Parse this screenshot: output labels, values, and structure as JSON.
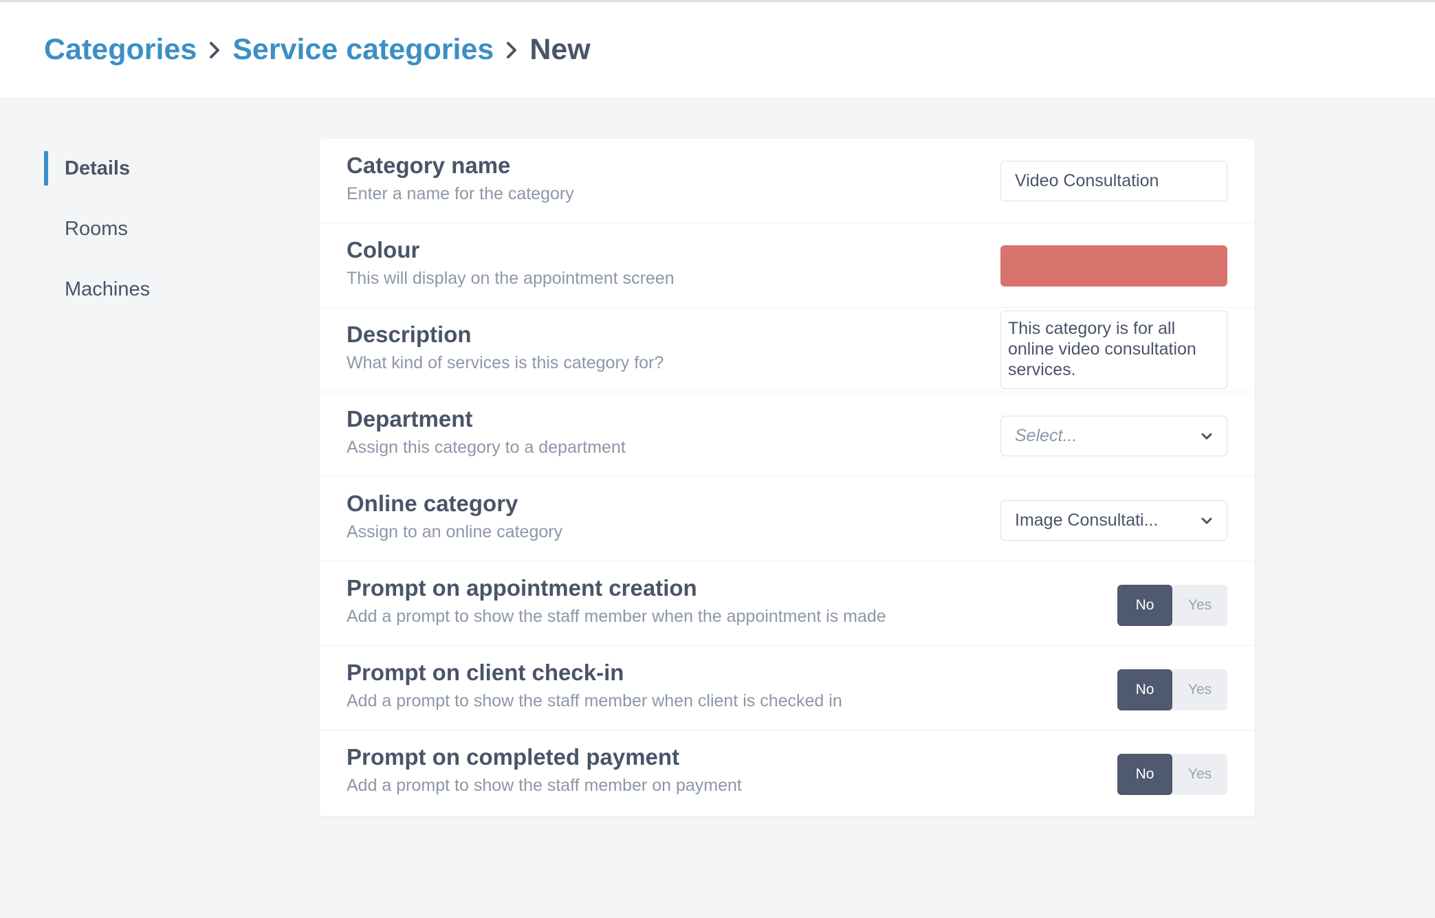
{
  "breadcrumb": {
    "items": [
      "Categories",
      "Service categories"
    ],
    "current": "New"
  },
  "sidebar": {
    "items": [
      {
        "label": "Details",
        "active": true
      },
      {
        "label": "Rooms",
        "active": false
      },
      {
        "label": "Machines",
        "active": false
      }
    ]
  },
  "form": {
    "category_name": {
      "label": "Category name",
      "hint": "Enter a name for the category",
      "value": "Video Consultation"
    },
    "colour": {
      "label": "Colour",
      "hint": "This will display on the appointment screen",
      "value": "#d9736e"
    },
    "description": {
      "label": "Description",
      "hint": "What kind of services is this category for?",
      "value": "This category is for all online video consultation services."
    },
    "department": {
      "label": "Department",
      "hint": "Assign this category to a department",
      "placeholder": "Select..."
    },
    "online_category": {
      "label": "Online category",
      "hint": "Assign to an online category",
      "value": "Image Consultati..."
    },
    "prompt_creation": {
      "label": "Prompt on appointment creation",
      "hint": "Add a prompt to show the staff member when the appointment is made",
      "no": "No",
      "yes": "Yes",
      "selected": "No"
    },
    "prompt_checkin": {
      "label": "Prompt on client check-in",
      "hint": "Add a prompt to show the staff member when client is checked in",
      "no": "No",
      "yes": "Yes",
      "selected": "No"
    },
    "prompt_payment": {
      "label": "Prompt on completed payment",
      "hint": "Add a prompt to show the staff member on payment",
      "no": "No",
      "yes": "Yes",
      "selected": "No"
    }
  },
  "colors": {
    "accent": "#3b8fc6",
    "toggle_active": "#4f5a70"
  }
}
